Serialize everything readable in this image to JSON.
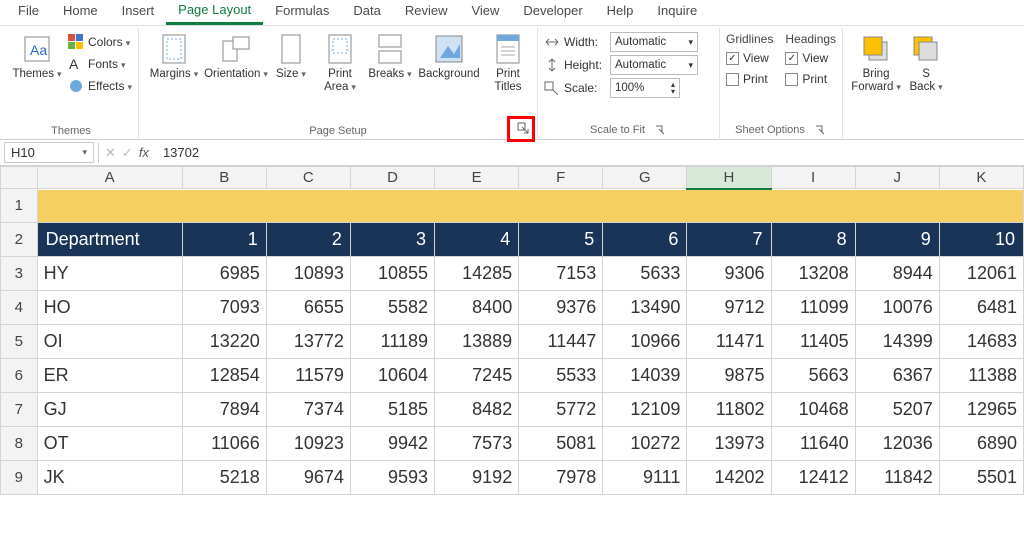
{
  "tabs": [
    "File",
    "Home",
    "Insert",
    "Page Layout",
    "Formulas",
    "Data",
    "Review",
    "View",
    "Developer",
    "Help",
    "Inquire"
  ],
  "active_tab": "Page Layout",
  "ribbon": {
    "themes": {
      "label": "Themes",
      "themes_btn": "Themes",
      "colors": "Colors",
      "fonts": "Fonts",
      "effects": "Effects"
    },
    "page_setup": {
      "label": "Page Setup",
      "margins": "Margins",
      "orientation": "Orientation",
      "size": "Size",
      "print_area": "Print\nArea",
      "breaks": "Breaks",
      "background": "Background",
      "print_titles": "Print\nTitles"
    },
    "scale_to_fit": {
      "label": "Scale to Fit",
      "width_lbl": "Width:",
      "width_val": "Automatic",
      "height_lbl": "Height:",
      "height_val": "Automatic",
      "scale_lbl": "Scale:",
      "scale_val": "100%"
    },
    "sheet_options": {
      "label": "Sheet Options",
      "gridlines": "Gridlines",
      "headings": "Headings",
      "view": "View",
      "print": "Print"
    },
    "arrange": {
      "bring_forward": "Bring\nForward",
      "send_backward": "S\nBack"
    }
  },
  "namebox": "H10",
  "formula_value": "13702",
  "col_headers": [
    "A",
    "B",
    "C",
    "D",
    "E",
    "F",
    "G",
    "H",
    "I",
    "J",
    "K"
  ],
  "active_col": "H",
  "row_headers": [
    1,
    2,
    3,
    4,
    5,
    6,
    7,
    8,
    9
  ],
  "table_header": [
    "Department",
    "1",
    "2",
    "3",
    "4",
    "5",
    "6",
    "7",
    "8",
    "9",
    "10"
  ],
  "rows": [
    [
      "HY",
      6985,
      10893,
      10855,
      14285,
      7153,
      5633,
      9306,
      13208,
      8944,
      12061
    ],
    [
      "HO",
      7093,
      6655,
      5582,
      8400,
      9376,
      13490,
      9712,
      11099,
      10076,
      6481
    ],
    [
      "OI",
      13220,
      13772,
      11189,
      13889,
      11447,
      10966,
      11471,
      11405,
      14399,
      14683
    ],
    [
      "ER",
      12854,
      11579,
      10604,
      7245,
      5533,
      14039,
      9875,
      5663,
      6367,
      11388
    ],
    [
      "GJ",
      7894,
      7374,
      5185,
      8482,
      5772,
      12109,
      11802,
      10468,
      5207,
      12965
    ],
    [
      "OT",
      11066,
      10923,
      9942,
      7573,
      5081,
      10272,
      13973,
      11640,
      12036,
      6890
    ],
    [
      "JK",
      5218,
      9674,
      9593,
      9192,
      7978,
      9111,
      14202,
      12412,
      11842,
      5501
    ]
  ],
  "colors": {
    "header_bg": "#1a3458",
    "gold_bg": "#f6cf63",
    "accent": "#107c41",
    "highlight": "#ff0000"
  }
}
